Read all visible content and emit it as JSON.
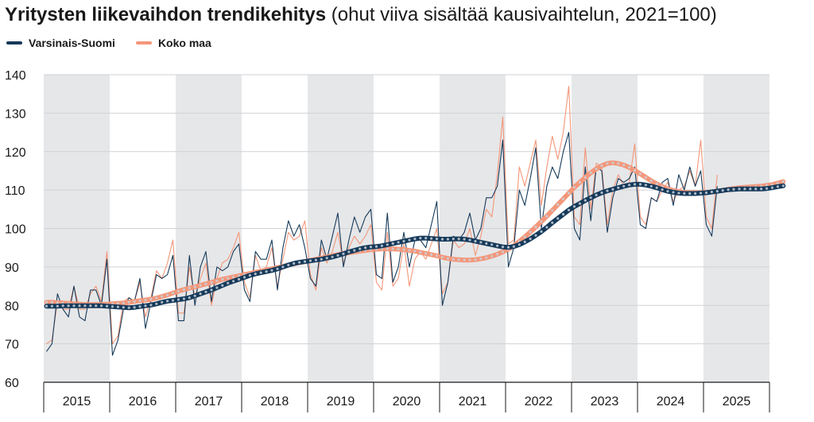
{
  "colors": {
    "varsinais_suomi": "#163a5a",
    "koko_maa": "#f4977a",
    "band": "#e6e7e9",
    "grid": "#cfd2d6",
    "axis": "#1a1a1a"
  },
  "chart_data": {
    "type": "line",
    "title": "Yritysten liikevaihdon trendikehitys",
    "subtitle": "(ohut viiva sisältää kausivaihtelun, 2021=100)",
    "xlabel": "",
    "ylabel": "",
    "ylim": [
      60,
      140
    ],
    "yticks": [
      60,
      70,
      80,
      90,
      100,
      110,
      120,
      130,
      140
    ],
    "xlim": [
      2015.0,
      2026.0
    ],
    "year_labels": [
      "2015",
      "2016",
      "2017",
      "2018",
      "2019",
      "2020",
      "2021",
      "2022",
      "2023",
      "2024",
      "2025"
    ],
    "shaded_years": [
      "2015",
      "2017",
      "2019",
      "2021",
      "2023",
      "2025"
    ],
    "grid": true,
    "legend_position": "top-left",
    "series": [
      {
        "name": "Varsinais-Suomi",
        "kind": "trend",
        "color_key": "varsinais_suomi",
        "start": "2015-01",
        "values": [
          79.8,
          79.8,
          79.8,
          79.9,
          79.9,
          79.9,
          79.9,
          79.9,
          79.9,
          79.9,
          79.9,
          79.8,
          79.7,
          79.6,
          79.5,
          79.4,
          79.5,
          79.7,
          79.9,
          80.1,
          80.4,
          80.8,
          81.1,
          81.3,
          81.5,
          81.7,
          82.0,
          82.5,
          83.0,
          83.5,
          84.0,
          84.6,
          85.2,
          85.8,
          86.3,
          86.8,
          87.3,
          87.8,
          88.2,
          88.5,
          88.8,
          89.1,
          89.5,
          90.0,
          90.5,
          90.9,
          91.2,
          91.4,
          91.6,
          91.8,
          92.0,
          92.3,
          92.6,
          93.0,
          93.4,
          93.9,
          94.3,
          94.7,
          95.0,
          95.2,
          95.3,
          95.5,
          95.8,
          96.1,
          96.4,
          96.7,
          97.0,
          97.3,
          97.5,
          97.5,
          97.4,
          97.3,
          97.2,
          97.2,
          97.3,
          97.3,
          97.2,
          97.0,
          96.7,
          96.4,
          96.1,
          95.8,
          95.5,
          95.2,
          95.1,
          95.3,
          95.8,
          96.5,
          97.3,
          98.2,
          99.2,
          100.3,
          101.5,
          102.6,
          103.7,
          104.8,
          105.7,
          106.5,
          107.3,
          108.0,
          108.7,
          109.3,
          109.8,
          110.2,
          110.6,
          111.0,
          111.3,
          111.5,
          111.5,
          111.3,
          111.0,
          110.6,
          110.1,
          109.7,
          109.4,
          109.2,
          109.1,
          109.1,
          109.1,
          109.2,
          109.3,
          109.5,
          109.7,
          109.9,
          110.1,
          110.2,
          110.3,
          110.3,
          110.3,
          110.3,
          110.3,
          110.4,
          110.6,
          110.9,
          111.1
        ]
      },
      {
        "name": "Koko maa",
        "kind": "trend",
        "color_key": "koko_maa",
        "start": "2015-01",
        "values": [
          80.8,
          80.8,
          80.7,
          80.6,
          80.5,
          80.4,
          80.3,
          80.2,
          80.2,
          80.2,
          80.2,
          80.3,
          80.4,
          80.5,
          80.6,
          80.8,
          81.0,
          81.2,
          81.4,
          81.6,
          81.9,
          82.3,
          82.7,
          83.2,
          83.7,
          84.1,
          84.5,
          84.8,
          85.2,
          85.6,
          86.0,
          86.4,
          86.8,
          87.1,
          87.4,
          87.7,
          88.0,
          88.3,
          88.6,
          88.9,
          89.2,
          89.5,
          89.8,
          90.1,
          90.5,
          90.8,
          91.1,
          91.4,
          91.7,
          92.0,
          92.3,
          92.6,
          92.9,
          93.2,
          93.5,
          93.7,
          93.9,
          94.1,
          94.3,
          94.5,
          94.6,
          94.7,
          94.7,
          94.7,
          94.6,
          94.5,
          94.3,
          94.1,
          93.8,
          93.5,
          93.2,
          92.9,
          92.5,
          92.2,
          92.0,
          91.9,
          91.8,
          91.8,
          91.9,
          92.1,
          92.4,
          92.8,
          93.3,
          93.9,
          94.6,
          95.5,
          96.6,
          97.8,
          99.1,
          100.4,
          101.8,
          103.2,
          104.7,
          106.2,
          107.7,
          109.2,
          110.7,
          112.0,
          113.3,
          114.5,
          115.5,
          116.3,
          116.9,
          117.1,
          116.9,
          116.5,
          115.9,
          115.1,
          114.2,
          113.3,
          112.4,
          111.6,
          110.9,
          110.3,
          109.9,
          109.6,
          109.4,
          109.3,
          109.3,
          109.3,
          109.4,
          109.5,
          109.7,
          109.9,
          110.2,
          110.4,
          110.6,
          110.7,
          110.8,
          110.9,
          111.0,
          111.2,
          111.4,
          111.8,
          112.2
        ]
      },
      {
        "name": "Varsinais-Suomi",
        "kind": "original",
        "color_key": "varsinais_suomi",
        "start": "2015-01",
        "values": [
          68,
          70,
          83,
          79,
          77,
          85,
          77,
          76,
          84,
          84,
          80,
          92,
          67,
          71,
          79,
          82,
          81,
          87,
          74,
          81,
          88,
          87,
          88,
          93,
          76,
          76,
          93,
          80,
          90,
          94,
          81,
          90,
          89,
          90,
          94,
          96,
          84,
          81,
          94,
          92,
          92,
          97,
          84,
          95,
          102,
          98,
          101,
          95,
          87,
          85,
          97,
          92,
          98,
          104,
          90,
          97,
          103,
          99,
          103,
          105,
          88,
          87,
          104,
          86,
          90,
          99,
          90,
          97,
          97,
          95,
          101,
          107,
          80,
          86,
          98,
          97,
          99,
          104,
          97,
          100,
          108,
          108,
          111,
          123,
          90,
          95,
          110,
          106,
          113,
          121,
          100,
          111,
          116,
          113,
          120,
          125,
          100,
          97,
          116,
          102,
          116,
          115,
          99,
          108,
          113,
          112,
          113,
          116,
          101,
          100,
          108,
          107,
          112,
          113,
          106,
          114,
          110,
          116,
          111,
          115,
          101,
          98,
          111
        ]
      },
      {
        "name": "Koko maa",
        "kind": "original",
        "color_key": "koko_maa",
        "start": "2015-01",
        "values": [
          70,
          71,
          81,
          79,
          79,
          85,
          79,
          79,
          83,
          85,
          81,
          94,
          70,
          72,
          81,
          82,
          81,
          86,
          77,
          82,
          89,
          87,
          91,
          97,
          78,
          78,
          90,
          82,
          87,
          91,
          80,
          87,
          91,
          92,
          95,
          99,
          86,
          82,
          93,
          89,
          90,
          95,
          85,
          92,
          99,
          97,
          98,
          102,
          88,
          84,
          95,
          91,
          94,
          99,
          91,
          95,
          98,
          96,
          98,
          101,
          86,
          84,
          99,
          85,
          87,
          96,
          85,
          92,
          94,
          92,
          96,
          100,
          83,
          86,
          97,
          95,
          96,
          100,
          93,
          98,
          105,
          103,
          114,
          129,
          96,
          97,
          116,
          111,
          117,
          123,
          106,
          116,
          124,
          118,
          125,
          137,
          103,
          101,
          121,
          105,
          117,
          116,
          101,
          110,
          114,
          111,
          112,
          122,
          103,
          101,
          108,
          107,
          110,
          112,
          107,
          110,
          111,
          115,
          111,
          123,
          103,
          100,
          114
        ]
      }
    ]
  }
}
